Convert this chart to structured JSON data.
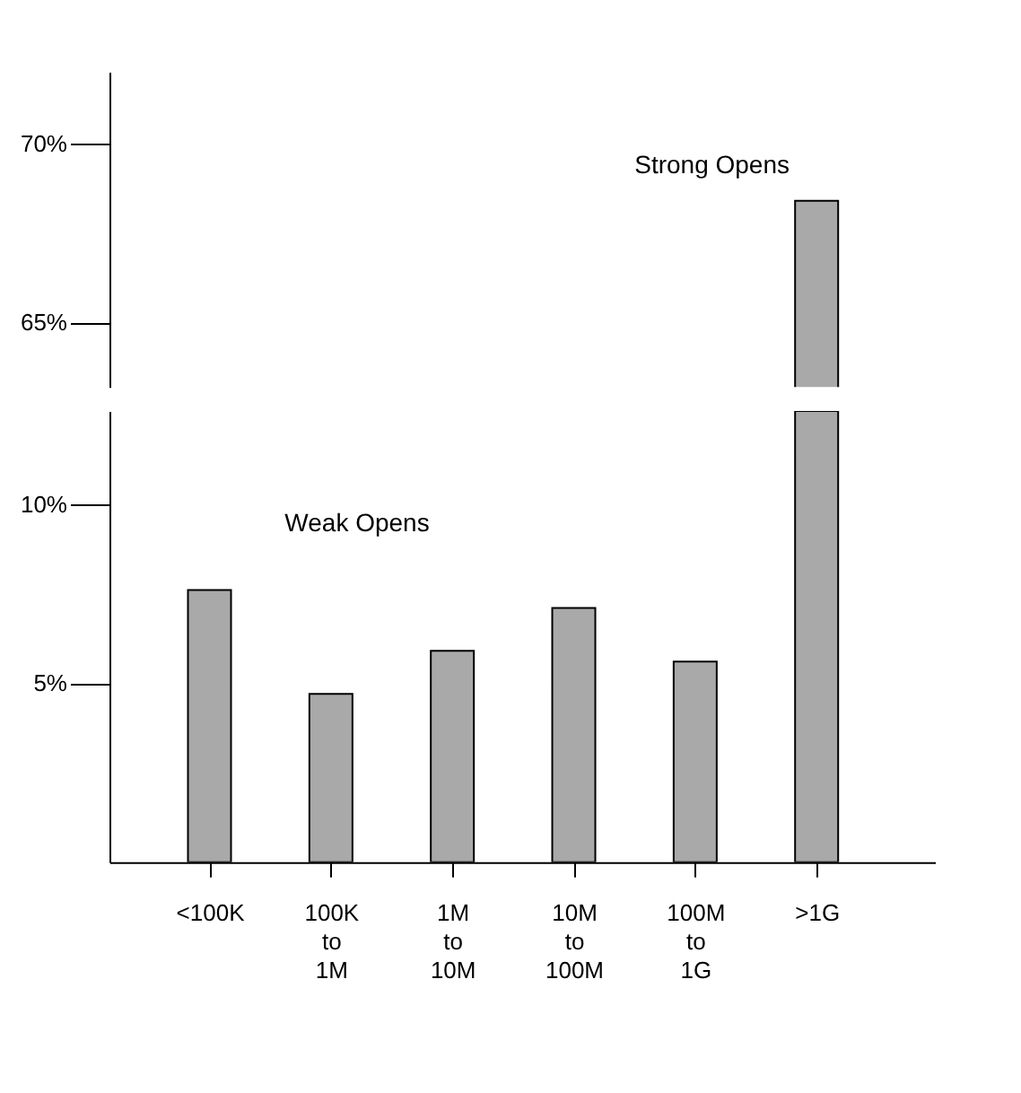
{
  "chart_data": [
    {
      "type": "bar",
      "values": [
        null,
        null,
        null,
        null,
        null,
        68.4
      ],
      "color": "#a9a9a9",
      "ylim": [
        63.2,
        72
      ],
      "yticks": [
        {
          "value": 65,
          "label": "65%"
        },
        {
          "value": 70,
          "label": "70%"
        }
      ],
      "annotations": [
        "Strong Opens"
      ],
      "tick_labels": "y",
      "grid": false
    },
    {
      "type": "bar",
      "categories": [
        "<100K",
        "100K to 1M",
        "1M to 10M",
        "10M to 100M",
        "100M to 1G",
        ">1G"
      ],
      "values": [
        7.6,
        4.7,
        5.9,
        7.1,
        5.6,
        12.6
      ],
      "color": "#a9a9a9",
      "ylim": [
        0,
        12.6
      ],
      "yticks": [
        {
          "value": 5,
          "label": "5%"
        },
        {
          "value": 10,
          "label": "10%"
        }
      ],
      "annotations": [
        "Weak Opens"
      ],
      "grid": false
    }
  ]
}
